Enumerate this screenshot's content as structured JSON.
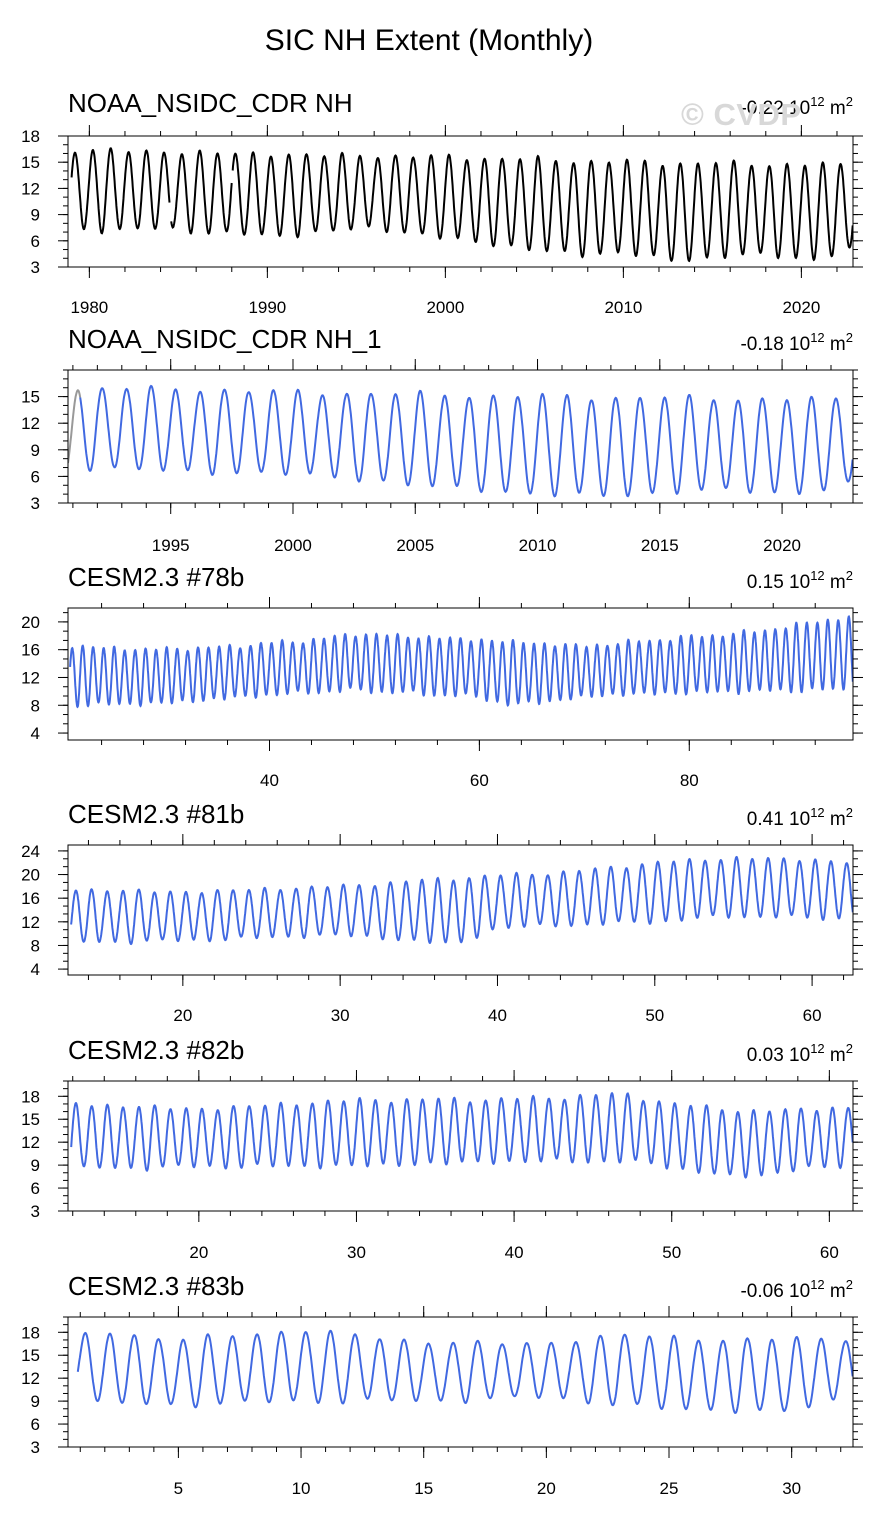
{
  "title": "SIC NH Extent (Monthly)",
  "watermark": "© CVDP",
  "colors": {
    "obs_line": "#000000",
    "model_line": "#4169e1",
    "spinup_line": "#999999"
  },
  "chart_data": [
    {
      "type": "line",
      "title": "NOAA_NSIDC_CDR NH",
      "trend": {
        "value": "-0.22",
        "base": "10",
        "exp": "12",
        "unit": "m",
        "unit_exp": "2"
      },
      "xlim": [
        1978.8,
        2022.9
      ],
      "ylim": [
        3,
        18
      ],
      "yticks": [
        3,
        6,
        9,
        12,
        15,
        18
      ],
      "xticks": [
        1980,
        1990,
        2000,
        2010,
        2020
      ],
      "series": [
        {
          "name": "NOAA_NSIDC_CDR NH",
          "segments": [
            [
              1979.0,
              1984.5
            ],
            [
              1984.6,
              1988.0
            ],
            [
              1988.05,
              2022.9
            ]
          ],
          "max": [
            [
              1979.2,
              16.4
            ],
            [
              1984.0,
              16.2
            ],
            [
              1990.0,
              15.9
            ],
            [
              2000.0,
              15.6
            ],
            [
              2010.0,
              15.0
            ],
            [
              2020.0,
              14.7
            ]
          ],
          "min": [
            [
              1979.7,
              7.3
            ],
            [
              1985.0,
              7.3
            ],
            [
              1990.0,
              6.5
            ],
            [
              1996.0,
              7.5
            ],
            [
              2000.0,
              6.3
            ],
            [
              2007.7,
              4.3
            ],
            [
              2010.0,
              4.8
            ],
            [
              2012.7,
              3.6
            ],
            [
              2016.0,
              4.4
            ],
            [
              2020.7,
              4.0
            ],
            [
              2022.7,
              4.8
            ]
          ]
        }
      ]
    },
    {
      "type": "line",
      "title": "NOAA_NSIDC_CDR NH_1",
      "trend": {
        "value": "-0.18",
        "base": "10",
        "exp": "12",
        "unit": "m",
        "unit_exp": "2"
      },
      "xlim": [
        1990.8,
        2022.9
      ],
      "ylim": [
        3,
        18
      ],
      "yticks": [
        3,
        6,
        9,
        12,
        15
      ],
      "xticks": [
        1995,
        2000,
        2005,
        2010,
        2015,
        2020
      ],
      "series": [
        {
          "name": "NOAA_NSIDC_CDR NH_1",
          "segments": [
            [
              1991.3,
              2022.9
            ]
          ],
          "spinup": [
            1990.8,
            1991.3
          ],
          "max": [
            [
              1991.2,
              15.7
            ],
            [
              1993.0,
              16.0
            ],
            [
              2000.0,
              15.5
            ],
            [
              2010.0,
              15.0
            ],
            [
              2020.0,
              14.7
            ]
          ],
          "min": [
            [
              1990.9,
              6.6
            ],
            [
              1991.7,
              7.0
            ],
            [
              1995.7,
              6.5
            ],
            [
              2000.0,
              6.3
            ],
            [
              2007.7,
              4.4
            ],
            [
              2012.7,
              3.7
            ],
            [
              2016.0,
              4.4
            ],
            [
              2020.7,
              4.2
            ],
            [
              2022.7,
              5.0
            ]
          ]
        }
      ]
    },
    {
      "type": "line",
      "title": "CESM2.3 #78b",
      "trend": {
        "value": "0.15",
        "base": "10",
        "exp": "12",
        "unit": "m",
        "unit_exp": "2"
      },
      "xlim": [
        20.8,
        95.6
      ],
      "ylim": [
        3,
        22
      ],
      "yticks": [
        4,
        8,
        12,
        16,
        20
      ],
      "xticks": [
        40,
        60,
        80
      ],
      "series": [
        {
          "name": "CESM2.3 #78b",
          "segments": [
            [
              21.0,
              95.6
            ]
          ],
          "max": [
            [
              21.0,
              16.5
            ],
            [
              28.0,
              16.0
            ],
            [
              35.0,
              16.3
            ],
            [
              45.0,
              17.5
            ],
            [
              48.0,
              18.3
            ],
            [
              60.0,
              17.4
            ],
            [
              70.0,
              16.5
            ],
            [
              80.0,
              17.8
            ],
            [
              86.0,
              18.5
            ],
            [
              90.0,
              19.5
            ],
            [
              95.5,
              20.8
            ]
          ],
          "min": [
            [
              21.0,
              8.0
            ],
            [
              30.0,
              8.3
            ],
            [
              40.0,
              9.5
            ],
            [
              48.0,
              10.2
            ],
            [
              60.0,
              9.2
            ],
            [
              63.0,
              8.0
            ],
            [
              72.0,
              9.5
            ],
            [
              85.0,
              10.0
            ],
            [
              95.5,
              10.3
            ]
          ]
        }
      ]
    },
    {
      "type": "line",
      "title": "CESM2.3 #81b",
      "trend": {
        "value": "0.41",
        "base": "10",
        "exp": "12",
        "unit": "m",
        "unit_exp": "2"
      },
      "xlim": [
        12.7,
        62.6
      ],
      "ylim": [
        3,
        25
      ],
      "yticks": [
        4,
        8,
        12,
        16,
        20,
        24
      ],
      "xticks": [
        20,
        30,
        40,
        50,
        60
      ],
      "series": [
        {
          "name": "CESM2.3 #81b",
          "segments": [
            [
              12.9,
              62.6
            ]
          ],
          "max": [
            [
              13.0,
              17.5
            ],
            [
              20.0,
              17.0
            ],
            [
              30.0,
              18.0
            ],
            [
              38.0,
              19.5
            ],
            [
              45.0,
              20.5
            ],
            [
              50.0,
              22.0
            ],
            [
              55.0,
              22.8
            ],
            [
              60.0,
              22.5
            ],
            [
              62.5,
              22.0
            ]
          ],
          "min": [
            [
              13.0,
              8.5
            ],
            [
              20.0,
              8.8
            ],
            [
              30.0,
              9.8
            ],
            [
              37.5,
              8.2
            ],
            [
              40.0,
              11.0
            ],
            [
              50.0,
              12.0
            ],
            [
              55.0,
              13.0
            ],
            [
              62.5,
              12.5
            ]
          ]
        }
      ]
    },
    {
      "type": "line",
      "title": "CESM2.3 #82b",
      "trend": {
        "value": "0.03",
        "base": "10",
        "exp": "12",
        "unit": "m",
        "unit_exp": "2"
      },
      "xlim": [
        11.7,
        61.5
      ],
      "ylim": [
        3,
        20
      ],
      "yticks": [
        3,
        6,
        9,
        12,
        15,
        18
      ],
      "xticks": [
        20,
        30,
        40,
        50,
        60
      ],
      "series": [
        {
          "name": "CESM2.3 #82b",
          "segments": [
            [
              11.9,
              61.5
            ]
          ],
          "max": [
            [
              12.0,
              17.0
            ],
            [
              20.0,
              16.3
            ],
            [
              30.0,
              17.5
            ],
            [
              40.0,
              17.6
            ],
            [
              47.0,
              18.3
            ],
            [
              50.0,
              17.0
            ],
            [
              55.0,
              16.0
            ],
            [
              61.0,
              16.5
            ]
          ],
          "min": [
            [
              12.0,
              8.5
            ],
            [
              20.0,
              8.8
            ],
            [
              30.0,
              8.9
            ],
            [
              40.0,
              9.5
            ],
            [
              47.0,
              9.5
            ],
            [
              50.0,
              8.8
            ],
            [
              53.7,
              7.4
            ],
            [
              61.0,
              9.0
            ]
          ]
        }
      ]
    },
    {
      "type": "line",
      "title": "CESM2.3 #83b",
      "trend": {
        "value": "-0.06",
        "base": "10",
        "exp": "12",
        "unit": "m",
        "unit_exp": "2"
      },
      "xlim": [
        0.5,
        32.5
      ],
      "ylim": [
        3,
        20
      ],
      "yticks": [
        3,
        6,
        9,
        12,
        15,
        18
      ],
      "xticks": [
        5,
        10,
        15,
        20,
        25,
        30
      ],
      "series": [
        {
          "name": "CESM2.3 #83b",
          "segments": [
            [
              0.9,
              32.5
            ]
          ],
          "max": [
            [
              1.0,
              17.5
            ],
            [
              2.0,
              18.1
            ],
            [
              5.0,
              17.0
            ],
            [
              10.0,
              18.3
            ],
            [
              15.0,
              16.7
            ],
            [
              20.0,
              16.5
            ],
            [
              23.0,
              17.7
            ],
            [
              27.0,
              17.0
            ],
            [
              32.0,
              17.2
            ]
          ],
          "min": [
            [
              1.0,
              10.5
            ],
            [
              1.4,
              8.8
            ],
            [
              5.0,
              8.5
            ],
            [
              10.0,
              9.0
            ],
            [
              15.0,
              9.0
            ],
            [
              20.0,
              9.5
            ],
            [
              24.7,
              8.0
            ],
            [
              29.7,
              7.6
            ],
            [
              32.0,
              9.2
            ]
          ]
        }
      ]
    }
  ]
}
